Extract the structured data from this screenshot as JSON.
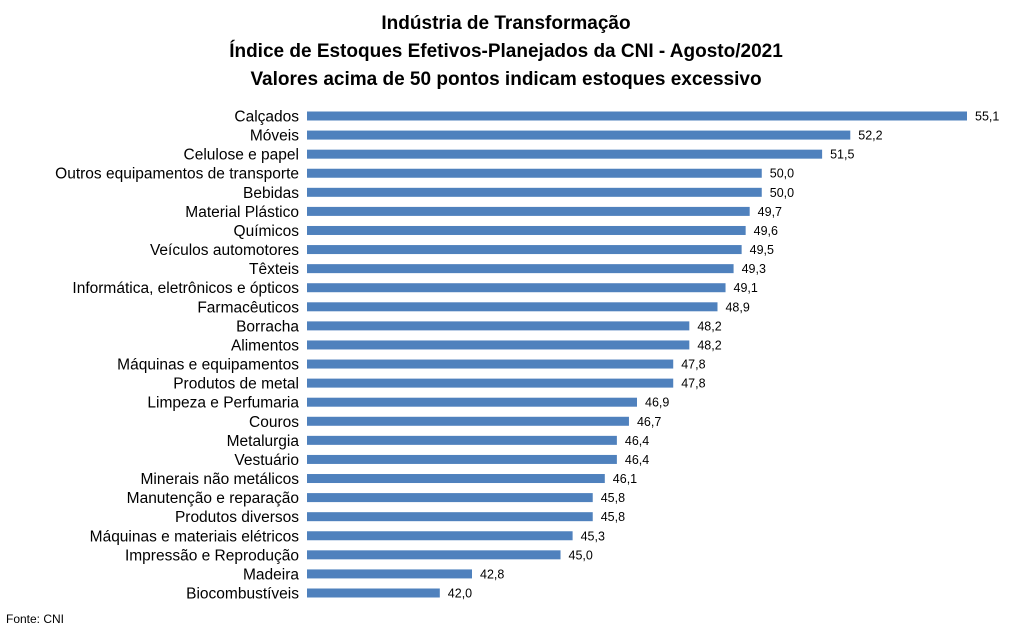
{
  "title_lines": [
    "Indústria de Transformação",
    "Índice de Estoques Efetivos-Planejados da CNI - Agosto/2021",
    "Valores acima de 50 pontos indicam estoques excessivo"
  ],
  "source": "Fonte: CNI",
  "colors": {
    "bar": "#4f81bd",
    "text": "#000000"
  },
  "chart_data": {
    "type": "bar",
    "orientation": "horizontal",
    "title": "Indústria de Transformação / Índice de Estoques Efetivos-Planejados da CNI - Agosto/2021 / Valores acima de 50 pontos indicam estoques excessivo",
    "categories": [
      "Calçados",
      "Móveis",
      "Celulose e papel",
      "Outros equipamentos de transporte",
      "Bebidas",
      "Material Plástico",
      "Químicos",
      "Veículos automotores",
      "Têxteis",
      "Informática, eletrônicos e ópticos",
      "Farmacêuticos",
      "Borracha",
      "Alimentos",
      "Máquinas e equipamentos",
      "Produtos de metal",
      "Limpeza e Perfumaria",
      "Couros",
      "Metalurgia",
      "Vestuário",
      "Minerais não metálicos",
      "Manutenção e reparação",
      "Produtos diversos",
      "Máquinas e materiais elétricos",
      "Impressão e Reprodução",
      "Madeira",
      "Biocombustíveis"
    ],
    "values": [
      55.1,
      52.2,
      51.5,
      50.0,
      50.0,
      49.7,
      49.6,
      49.5,
      49.3,
      49.1,
      48.9,
      48.2,
      48.2,
      47.8,
      47.8,
      46.9,
      46.7,
      46.4,
      46.4,
      46.1,
      45.8,
      45.8,
      45.3,
      45.0,
      42.8,
      42.0
    ],
    "value_labels": [
      "55,1",
      "52,2",
      "51,5",
      "50,0",
      "50,0",
      "49,7",
      "49,6",
      "49,5",
      "49,3",
      "49,1",
      "48,9",
      "48,2",
      "48,2",
      "47,8",
      "47,8",
      "46,9",
      "46,7",
      "46,4",
      "46,4",
      "46,1",
      "45,8",
      "45,8",
      "45,3",
      "45,0",
      "42,8",
      "42,0"
    ],
    "xlim": [
      38.7,
      55.4
    ],
    "grid": false,
    "legend": "none",
    "axis_visible": false
  }
}
